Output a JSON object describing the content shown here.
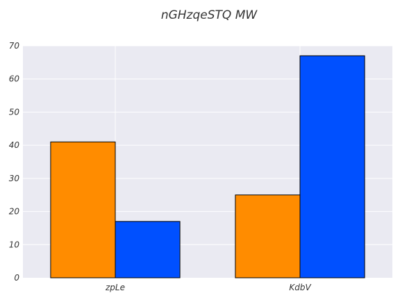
{
  "chart_data": {
    "type": "bar",
    "title": "nGHzqeSTQ MW",
    "xlabel": "",
    "ylabel": "",
    "categories": [
      "zpLe",
      "KdbV"
    ],
    "series": [
      {
        "values": [
          41,
          25
        ],
        "color": "#FF8C00"
      },
      {
        "values": [
          17,
          67
        ],
        "color": "#0050FF"
      }
    ],
    "ylim": [
      0,
      70
    ],
    "yticks": [
      0,
      10,
      20,
      30,
      40,
      50,
      60,
      70
    ],
    "grid": true,
    "background": "#EAEAF2"
  }
}
